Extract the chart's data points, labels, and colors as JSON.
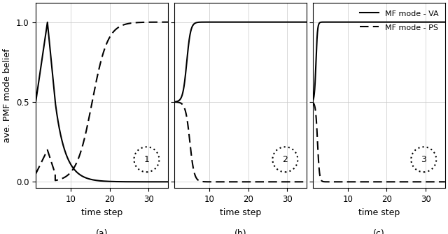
{
  "ylabel": "ave. PMF mode belief",
  "xlabel": "time step",
  "xlim": [
    1,
    35
  ],
  "ylim": [
    -0.04,
    1.12
  ],
  "yticks": [
    0,
    0.5,
    1
  ],
  "xticks": [
    10,
    20,
    30
  ],
  "subplot_labels": [
    "(a)",
    "(b)",
    "(c)"
  ],
  "circle_labels": [
    "1",
    "2",
    "3"
  ],
  "legend_entries": [
    "MF mode - VA",
    "MF mode - PS"
  ],
  "line_color": "#000000",
  "grid_color": "#c8c8c8",
  "background_color": "#ffffff",
  "figsize": [
    6.4,
    3.35
  ],
  "dpi": 100
}
